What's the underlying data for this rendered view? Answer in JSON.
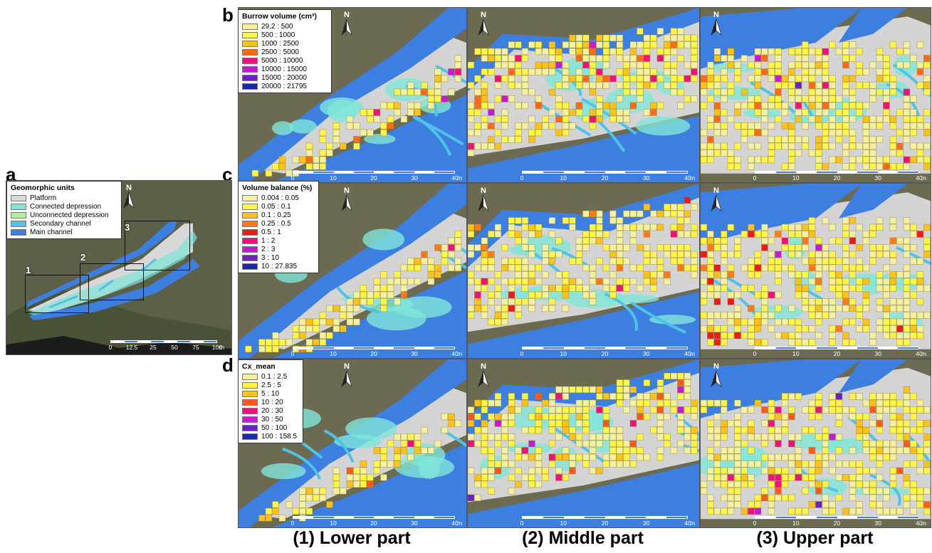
{
  "panels": {
    "a": "a",
    "b": "b",
    "c": "c",
    "d": "d"
  },
  "legend_a": {
    "title": "Geomorphic units",
    "items": [
      {
        "label": "Platform",
        "color": "#d9d9d9"
      },
      {
        "label": "Connected depression",
        "color": "#7fe6d8"
      },
      {
        "label": "Unconnected depression",
        "color": "#aef29a"
      },
      {
        "label": "Secondary channel",
        "color": "#4ec3e6"
      },
      {
        "label": "Main channel",
        "color": "#3d7fe0"
      }
    ]
  },
  "legend_b": {
    "title": "Burrow volume (cm³)",
    "items": [
      {
        "label": "29,2 : 500",
        "color": "#f5f0a0"
      },
      {
        "label": "500 : 1000",
        "color": "#fff44a"
      },
      {
        "label": "1000 : 2500",
        "color": "#ffc21a"
      },
      {
        "label": "2500 : 5000",
        "color": "#ff6a1a"
      },
      {
        "label": "5000 : 10000",
        "color": "#f0127a"
      },
      {
        "label": "10000 : 15000",
        "color": "#c61ad0"
      },
      {
        "label": "15000 : 20000",
        "color": "#6a22c8"
      },
      {
        "label": "20000 : 21795",
        "color": "#1a2aa8"
      }
    ]
  },
  "legend_c": {
    "title": "Volume balance (%)",
    "items": [
      {
        "label": "0.004 : 0.05",
        "color": "#f5f0a0"
      },
      {
        "label": "0.05 : 0.1",
        "color": "#fff44a"
      },
      {
        "label": "0.1 : 0.25",
        "color": "#ffc21a"
      },
      {
        "label": "0.25 : 0.5",
        "color": "#ff7a1a"
      },
      {
        "label": "0.5 : 1",
        "color": "#ee1a1a"
      },
      {
        "label": "1 : 2",
        "color": "#f0127a"
      },
      {
        "label": "2 : 3",
        "color": "#c61ad0"
      },
      {
        "label": "3 : 10",
        "color": "#6a22c8"
      },
      {
        "label": "10 : 27.835",
        "color": "#1a2aa8"
      }
    ]
  },
  "legend_d": {
    "title": "Cx_mean",
    "items": [
      {
        "label": "0.1 : 2.5",
        "color": "#f5f0a0"
      },
      {
        "label": "2.5 : 5",
        "color": "#fff44a"
      },
      {
        "label": "5 : 10",
        "color": "#ffc21a"
      },
      {
        "label": "10 : 20",
        "color": "#ff5a1a"
      },
      {
        "label": "20 : 30",
        "color": "#f0127a"
      },
      {
        "label": "30 : 50",
        "color": "#c61ad0"
      },
      {
        "label": "50 : 100",
        "color": "#6a22c8"
      },
      {
        "label": "100 : 158.5",
        "color": "#1a2aa8"
      }
    ]
  },
  "overview": {
    "north_label": "N",
    "boxes": [
      "1",
      "2",
      "3"
    ],
    "scale_ticks": [
      "0",
      "12.5",
      "25",
      "50",
      "75",
      "100"
    ],
    "scale_unit": "m"
  },
  "detail_scale": {
    "ticks": [
      "0",
      "10",
      "20",
      "30",
      "40"
    ],
    "unit": "m"
  },
  "north_label": "N",
  "captions": {
    "col1": "(1) Lower part",
    "col2": "(2) Middle part",
    "col3": "(3) Upper part"
  },
  "colors": {
    "aerial": "#6d6a52",
    "platform": "#d4d4d4",
    "connected_depression": "#7fe6d8",
    "unconnected_depression": "#aef29a",
    "secondary_channel": "#4ec3e6",
    "main_channel": "#3d7fe0"
  }
}
